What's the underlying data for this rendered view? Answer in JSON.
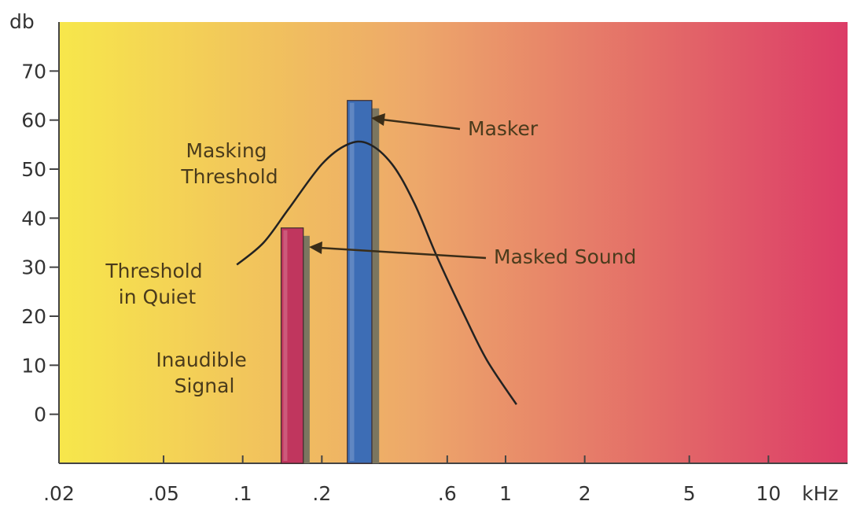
{
  "chart_data": {
    "type": "bar",
    "xscale": "log",
    "x_unit": "kHz",
    "y_unit": "db",
    "xlim": [
      0.02,
      20
    ],
    "ylim": [
      -10,
      80
    ],
    "grid": false,
    "background": {
      "left_color": "#f7e74b",
      "mid_color": "#eda86a",
      "right_color": "#dc3c67"
    },
    "x_ticks": [
      {
        "value": 0.02,
        "label": ".02"
      },
      {
        "value": 0.05,
        "label": ".05"
      },
      {
        "value": 0.1,
        "label": ".1"
      },
      {
        "value": 0.2,
        "label": ".2"
      },
      {
        "value": 0.6,
        "label": ".6"
      },
      {
        "value": 1,
        "label": "1"
      },
      {
        "value": 2,
        "label": "2"
      },
      {
        "value": 5,
        "label": "5"
      },
      {
        "value": 10,
        "label": "10"
      }
    ],
    "y_ticks": [
      {
        "value": 0,
        "label": "0"
      },
      {
        "value": 10,
        "label": "10"
      },
      {
        "value": 20,
        "label": "20"
      },
      {
        "value": 30,
        "label": "30"
      },
      {
        "value": 40,
        "label": "40"
      },
      {
        "value": 50,
        "label": "50"
      },
      {
        "value": 60,
        "label": "60"
      },
      {
        "value": 70,
        "label": "70"
      }
    ],
    "bars": [
      {
        "id": "masked-sound",
        "x_from": 0.14,
        "x_to": 0.17,
        "value": 38,
        "color": "#c0365e"
      },
      {
        "id": "masker",
        "x_from": 0.25,
        "x_to": 0.31,
        "value": 64,
        "color": "#3d6db5"
      }
    ],
    "threshold_curve": {
      "points": [
        [
          0.095,
          30.5
        ],
        [
          0.12,
          35
        ],
        [
          0.15,
          42
        ],
        [
          0.2,
          51
        ],
        [
          0.25,
          55
        ],
        [
          0.3,
          55.2
        ],
        [
          0.37,
          51
        ],
        [
          0.45,
          43
        ],
        [
          0.55,
          32
        ],
        [
          0.7,
          20
        ],
        [
          0.85,
          11
        ],
        [
          1.1,
          2
        ]
      ],
      "color": "#222222"
    },
    "annotations": {
      "masking_threshold": [
        "Masking",
        "Threshold"
      ],
      "threshold_in_quiet": [
        "Threshold",
        "in Quiet"
      ],
      "inaudible_signal": [
        "Inaudible",
        "Signal"
      ],
      "masker": "Masker",
      "masked_sound": "Masked Sound"
    }
  }
}
